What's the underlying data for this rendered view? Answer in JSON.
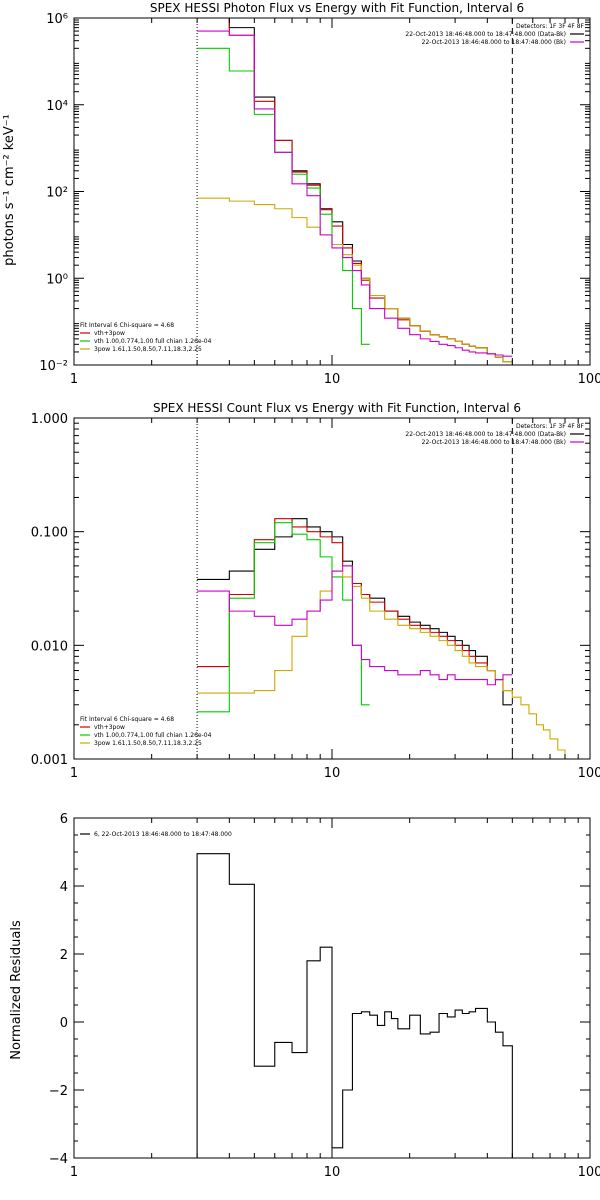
{
  "chart_data": [
    {
      "type": "line",
      "title": "SPEX HESSI Photon Flux vs Energy with Fit Function, Interval 6",
      "xlabel": "",
      "ylabel": "photons s⁻¹ cm⁻² keV⁻¹",
      "xscale": "log",
      "yscale": "log",
      "xlim": [
        1,
        100
      ],
      "ylim": [
        0.01,
        1000000
      ],
      "xticks": [
        1,
        10,
        100
      ],
      "xticklabels": [
        "1",
        "10",
        "100"
      ],
      "yticks": [
        0.01,
        1,
        100,
        10000,
        1000000
      ],
      "yticklabels": [
        "10⁻²",
        "10⁰",
        "10²",
        "10⁴",
        "10⁶"
      ],
      "vlines": [
        {
          "x": 3,
          "style": "dotted",
          "color": "#000000"
        },
        {
          "x": 50,
          "style": "dashed",
          "color": "#000000"
        }
      ],
      "legend_tr": [
        {
          "text": "Detectors: 1F 3F 4F 8F",
          "color": "#000000",
          "swatch": false
        },
        {
          "text": "22-Oct-2013 18:46:48.000 to 18:47:48.000 (Data-Bk)",
          "color": "#000000",
          "swatch": true
        },
        {
          "text": "22-Oct-2013 18:46:48.000 to 18:47:48.000 (Bk)",
          "color": "#cc00cc",
          "swatch": true
        }
      ],
      "legend_bl": [
        {
          "text": "Fit Interval 6   Chi-square = 4.68",
          "color": "#000000",
          "swatch": false
        },
        {
          "text": "vth+3pow",
          "color": "#cc0000",
          "swatch": true
        },
        {
          "text": "vth 1.00,0.774,1.00  full chian 1.26e-04",
          "color": "#00cc00",
          "swatch": true
        },
        {
          "text": "3pow 1.61,1.50,8.50,7.11,18.3,2.25",
          "color": "#ccaa00",
          "swatch": true
        }
      ],
      "series": [
        {
          "name": "22-Oct-2013 18:46:48.000 to 18:47:48.000 (Data-Bk)",
          "color": "#000000",
          "edges": [
            3,
            4,
            5,
            6,
            7,
            8,
            9,
            10,
            11,
            12,
            13,
            14,
            16,
            18,
            20,
            22,
            24,
            26,
            28,
            30,
            32,
            34,
            36,
            40,
            43,
            46,
            50
          ],
          "values": [
            1000000,
            600000,
            15000,
            1500,
            300,
            150,
            40,
            20,
            6,
            2.5,
            1.0,
            0.4,
            0.2,
            0.12,
            0.08,
            0.06,
            0.05,
            0.045,
            0.04,
            0.035,
            0.03,
            0.027,
            0.025,
            0.018,
            0.015,
            0.012
          ]
        },
        {
          "name": "vth+3pow",
          "color": "#cc0000",
          "edges": [
            3,
            4,
            5,
            6,
            7,
            8,
            9,
            10,
            11,
            12,
            13,
            14,
            16,
            18,
            20,
            22,
            24,
            26,
            28,
            30,
            32,
            34,
            36,
            40,
            43,
            46,
            50
          ],
          "values": [
            1000000,
            400000,
            12000,
            1500,
            280,
            140,
            38,
            16,
            5,
            2.2,
            0.9,
            0.35,
            0.2,
            0.11,
            0.08,
            0.06,
            0.05,
            0.045,
            0.04,
            0.035,
            0.03,
            0.027,
            0.025,
            0.018,
            0.015,
            0.012
          ]
        },
        {
          "name": "vth 1.00,0.774,1.00  full chian 1.26e-04",
          "color": "#00cc00",
          "edges": [
            3,
            4,
            5,
            6,
            7,
            8,
            9,
            10,
            11,
            12,
            13,
            14
          ],
          "values": [
            200000,
            60000,
            6000,
            800,
            250,
            120,
            30,
            6,
            1.5,
            0.2,
            0.03
          ]
        },
        {
          "name": "3pow 1.61,1.50,8.50,7.11,18.3,2.25",
          "color": "#ccaa00",
          "edges": [
            3,
            4,
            5,
            6,
            7,
            8,
            9,
            10,
            11,
            12,
            13,
            14,
            16,
            18,
            20,
            22,
            24,
            26,
            28,
            30,
            32,
            34,
            36,
            40,
            43,
            46,
            50,
            54,
            58,
            62,
            66
          ],
          "values": [
            70,
            60,
            50,
            40,
            25,
            15,
            10,
            6,
            3.5,
            2.0,
            1.0,
            0.4,
            0.2,
            0.12,
            0.08,
            0.06,
            0.05,
            0.045,
            0.04,
            0.035,
            0.03,
            0.027,
            0.025,
            0.018,
            0.015,
            0.012,
            0.01,
            0.009,
            0.008,
            0.007
          ]
        },
        {
          "name": "22-Oct-2013 18:46:48.000 to 18:47:48.000 (Bk)",
          "color": "#cc00cc",
          "edges": [
            3,
            4,
            5,
            6,
            7,
            8,
            9,
            10,
            11,
            12,
            13,
            14,
            16,
            18,
            20,
            22,
            24,
            26,
            28,
            30,
            32,
            34,
            36,
            40,
            43,
            46,
            50
          ],
          "values": [
            500000,
            400000,
            8000,
            800,
            150,
            80,
            10,
            5,
            3,
            1.5,
            0.7,
            0.2,
            0.12,
            0.07,
            0.05,
            0.04,
            0.035,
            0.03,
            0.028,
            0.025,
            0.022,
            0.02,
            0.019,
            0.018,
            0.017,
            0.016
          ]
        }
      ]
    },
    {
      "type": "line",
      "title": "SPEX HESSI Count Flux vs Energy with Fit Function, Interval 6",
      "xlabel": "",
      "ylabel": "",
      "xscale": "log",
      "yscale": "log",
      "xlim": [
        1,
        100
      ],
      "ylim": [
        0.001,
        1
      ],
      "xticks": [
        1,
        10,
        100
      ],
      "xticklabels": [
        "1",
        "10",
        "100"
      ],
      "yticks": [
        0.001,
        0.01,
        0.1,
        1
      ],
      "yticklabels": [
        "0.001",
        "0.010",
        "0.100",
        "1.000"
      ],
      "vlines": [
        {
          "x": 3,
          "style": "dotted",
          "color": "#000000"
        },
        {
          "x": 50,
          "style": "dashed",
          "color": "#000000"
        }
      ],
      "legend_tr": [
        {
          "text": "Detectors: 1F 3F 4F 8F",
          "color": "#000000",
          "swatch": false
        },
        {
          "text": "22-Oct-2013 18:46:48.000 to 18:47:48.000 (Data-Bk)",
          "color": "#000000",
          "swatch": true
        },
        {
          "text": "22-Oct-2013 18:46:48.000 to 18:47:48.000 (Bk)",
          "color": "#cc00cc",
          "swatch": true
        }
      ],
      "legend_bl": [
        {
          "text": "Fit Interval 6   Chi-square = 4.68",
          "color": "#000000",
          "swatch": false
        },
        {
          "text": "vth+3pow",
          "color": "#cc0000",
          "swatch": true
        },
        {
          "text": "vth 1.00,0.774,1.00  full chian 1.26e-04",
          "color": "#00cc00",
          "swatch": true
        },
        {
          "text": "3pow 1.61,1.50,8.50,7.11,18.3,2.25",
          "color": "#ccaa00",
          "swatch": true
        }
      ],
      "series": [
        {
          "name": "22-Oct-2013 18:46:48.000 to 18:47:48.000 (Data-Bk)",
          "color": "#000000",
          "edges": [
            3,
            4,
            5,
            6,
            7,
            8,
            9,
            10,
            11,
            12,
            13,
            14,
            16,
            18,
            20,
            22,
            24,
            26,
            28,
            30,
            32,
            34,
            36,
            40,
            43,
            46,
            50
          ],
          "values": [
            0.038,
            0.045,
            0.07,
            0.09,
            0.13,
            0.11,
            0.1,
            0.09,
            0.055,
            0.035,
            0.028,
            0.026,
            0.02,
            0.018,
            0.016,
            0.015,
            0.014,
            0.013,
            0.012,
            0.011,
            0.01,
            0.009,
            0.008,
            0.006,
            0.005,
            0.003
          ]
        },
        {
          "name": "vth+3pow",
          "color": "#cc0000",
          "edges": [
            3,
            4,
            5,
            6,
            7,
            8,
            9,
            10,
            11,
            12,
            13,
            14,
            16,
            18,
            20,
            22,
            24,
            26,
            28,
            30,
            32,
            34,
            36,
            40,
            43,
            46,
            50
          ],
          "values": [
            0.0065,
            0.028,
            0.085,
            0.13,
            0.11,
            0.1,
            0.09,
            0.08,
            0.05,
            0.035,
            0.028,
            0.024,
            0.02,
            0.017,
            0.015,
            0.014,
            0.013,
            0.012,
            0.011,
            0.01,
            0.009,
            0.008,
            0.007,
            0.006,
            0.005,
            0.004
          ]
        },
        {
          "name": "vth 1.00,0.774,1.00  full chian 1.26e-04",
          "color": "#00cc00",
          "edges": [
            3,
            4,
            5,
            6,
            7,
            8,
            9,
            10,
            11,
            12,
            13,
            14
          ],
          "values": [
            0.0026,
            0.026,
            0.08,
            0.12,
            0.095,
            0.085,
            0.06,
            0.04,
            0.025,
            0.01,
            0.003
          ]
        },
        {
          "name": "3pow 1.61,1.50,8.50,7.11,18.3,2.25",
          "color": "#ccaa00",
          "edges": [
            3,
            4,
            5,
            6,
            7,
            8,
            9,
            10,
            11,
            12,
            13,
            14,
            16,
            18,
            20,
            22,
            24,
            26,
            28,
            30,
            32,
            34,
            36,
            40,
            43,
            46,
            50,
            54,
            58,
            62,
            66,
            70,
            75,
            80,
            85,
            90
          ],
          "values": [
            0.0038,
            0.0038,
            0.004,
            0.006,
            0.012,
            0.02,
            0.03,
            0.045,
            0.04,
            0.033,
            0.026,
            0.02,
            0.017,
            0.015,
            0.014,
            0.013,
            0.012,
            0.011,
            0.01,
            0.009,
            0.008,
            0.007,
            0.0065,
            0.006,
            0.005,
            0.004,
            0.0035,
            0.003,
            0.0025,
            0.002,
            0.0018,
            0.0015,
            0.0012,
            0.001,
            0.0009
          ]
        },
        {
          "name": "22-Oct-2013 18:46:48.000 to 18:47:48.000 (Bk)",
          "color": "#cc00cc",
          "edges": [
            3,
            4,
            5,
            6,
            7,
            8,
            9,
            10,
            11,
            12,
            13,
            14,
            16,
            18,
            20,
            22,
            24,
            26,
            28,
            30,
            32,
            34,
            36,
            40,
            43,
            46,
            50
          ],
          "values": [
            0.03,
            0.02,
            0.018,
            0.015,
            0.017,
            0.02,
            0.025,
            0.045,
            0.05,
            0.01,
            0.0075,
            0.0065,
            0.006,
            0.0055,
            0.0055,
            0.006,
            0.0055,
            0.005,
            0.0055,
            0.005,
            0.005,
            0.005,
            0.005,
            0.0045,
            0.005,
            0.0055
          ]
        }
      ]
    },
    {
      "type": "line",
      "title": "",
      "xlabel": "",
      "ylabel": "Normalized Residuals",
      "xscale": "log",
      "yscale": "linear",
      "xlim": [
        1,
        100
      ],
      "ylim": [
        -4,
        6
      ],
      "xticks": [
        1,
        10,
        100
      ],
      "xticklabels": [
        "1",
        "10",
        "100"
      ],
      "yticks": [
        -4,
        -2,
        0,
        2,
        4,
        6
      ],
      "yticklabels": [
        "−4",
        "−2",
        "0",
        "2",
        "4",
        "6"
      ],
      "vlines": [],
      "legend_tr": [],
      "legend_bl": [],
      "legend_tl": [
        {
          "text": "6, 22-Oct-2013 18:46:48.000 to 18:47:48.000",
          "color": "#000000",
          "swatch": true
        }
      ],
      "series": [
        {
          "name": "6, 22-Oct-2013 18:46:48.000 to 18:47:48.000",
          "color": "#000000",
          "dropEnds": true,
          "edges": [
            3,
            4,
            5,
            6,
            7,
            8,
            9,
            10,
            11,
            12,
            13,
            14,
            15,
            16,
            17,
            18,
            20,
            22,
            24,
            26,
            28,
            30,
            32,
            34,
            36,
            40,
            43,
            46,
            50
          ],
          "values": [
            4.95,
            4.05,
            -1.3,
            -0.6,
            -0.9,
            1.8,
            2.2,
            -3.7,
            -2.0,
            0.25,
            0.3,
            0.2,
            -0.1,
            0.3,
            0.1,
            -0.2,
            0.2,
            -0.35,
            -0.3,
            0.25,
            0.15,
            0.35,
            0.25,
            0.3,
            0.4,
            0.0,
            -0.3,
            -0.7
          ]
        }
      ]
    }
  ]
}
